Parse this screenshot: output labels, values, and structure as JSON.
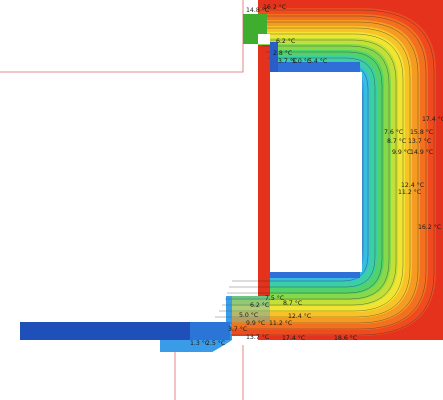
{
  "colors": {
    "cold_blue": "#1f4fb8",
    "band_ramp": [
      "#3a9be8",
      "#37b9e6",
      "#36d3d0",
      "#3fd69a",
      "#6ad55a",
      "#b6e03a",
      "#f0e532",
      "#f8c229",
      "#f59a25",
      "#f06a22",
      "#e83a1f"
    ],
    "warm_red": "#e5321c",
    "window_green": "#3fae2e",
    "outline": "#d96a6a"
  },
  "labels": [
    {
      "id": "t_14_8_top",
      "text": "14.8 °C"
    },
    {
      "id": "t_16_2_top",
      "text": "16.2 °C"
    },
    {
      "id": "t_6_2_a",
      "text": "6.2 °C"
    },
    {
      "id": "t_2_8",
      "text": "2.8 °C"
    },
    {
      "id": "t_3_7_a",
      "text": "3.7 °C"
    },
    {
      "id": "t_5_0",
      "text": "5.0 °C"
    },
    {
      "id": "t_5_4",
      "text": "5.4 °C"
    },
    {
      "id": "t_17_4",
      "text": "17.4 °C"
    },
    {
      "id": "t_7_6",
      "text": "7.6 °C"
    },
    {
      "id": "t_15_8",
      "text": "15.8 °C"
    },
    {
      "id": "t_8_7",
      "text": "8.7 °C"
    },
    {
      "id": "t_13_7_right",
      "text": "13.7 °C"
    },
    {
      "id": "t_9_9",
      "text": "9.9 °C"
    },
    {
      "id": "t_14_9",
      "text": "14.9 °C"
    },
    {
      "id": "t_12_4_right",
      "text": "12.4 °C"
    },
    {
      "id": "t_11_2_right",
      "text": "11.2 °C"
    },
    {
      "id": "t_16_2_right",
      "text": "16.2 °C"
    },
    {
      "id": "t_7_5",
      "text": "7.5 °C"
    },
    {
      "id": "t_6_2_b",
      "text": "6.2 °C"
    },
    {
      "id": "t_8_7_b",
      "text": "8.7 °C"
    },
    {
      "id": "t_5_0_b",
      "text": "5.0 °C"
    },
    {
      "id": "t_12_4_b",
      "text": "12.4 °C"
    },
    {
      "id": "t_3_7_b",
      "text": "3.7 °C"
    },
    {
      "id": "t_9_9_b",
      "text": "9.9 °C"
    },
    {
      "id": "t_11_2_b",
      "text": "11.2 °C"
    },
    {
      "id": "t_1_3",
      "text": "1.3 °C"
    },
    {
      "id": "t_2_5",
      "text": "2.5 °C"
    },
    {
      "id": "t_13_7_b",
      "text": "13.7 °C"
    },
    {
      "id": "t_17_4_b",
      "text": "17.4 °C"
    },
    {
      "id": "t_18_6",
      "text": "18.6 °C"
    }
  ]
}
